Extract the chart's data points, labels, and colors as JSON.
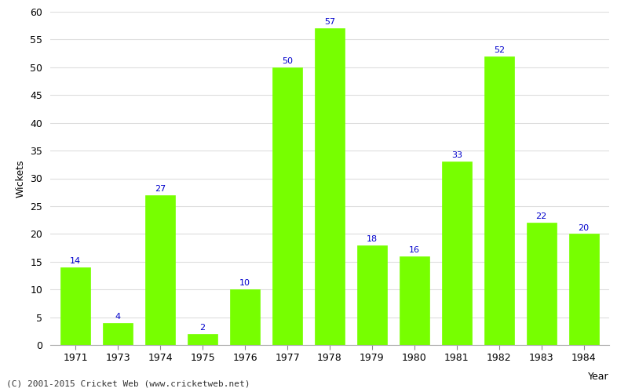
{
  "years": [
    "1971",
    "1973",
    "1974",
    "1975",
    "1976",
    "1977",
    "1978",
    "1979",
    "1980",
    "1981",
    "1982",
    "1983",
    "1984"
  ],
  "values": [
    14,
    4,
    27,
    2,
    10,
    50,
    57,
    18,
    16,
    33,
    52,
    22,
    20
  ],
  "bar_color": "#77ff00",
  "label_color": "#0000cc",
  "ylabel": "Wickets",
  "ylim": [
    0,
    60
  ],
  "yticks": [
    0,
    5,
    10,
    15,
    20,
    25,
    30,
    35,
    40,
    45,
    50,
    55,
    60
  ],
  "grid_color": "#dddddd",
  "bg_color": "#ffffff",
  "footer": "(C) 2001-2015 Cricket Web (www.cricketweb.net)",
  "label_fontsize": 8,
  "axis_fontsize": 9,
  "tick_color": "#000000",
  "bar_width": 0.7
}
